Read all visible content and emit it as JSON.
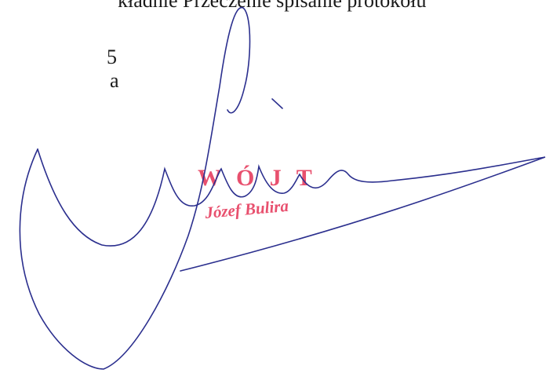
{
  "document": {
    "text_lines": [
      "kładnie Przeczenie spisanie protokołu",
      "5",
      "a"
    ],
    "stamp": {
      "title": "W Ó J T",
      "name": "Józef Bulira"
    }
  }
}
